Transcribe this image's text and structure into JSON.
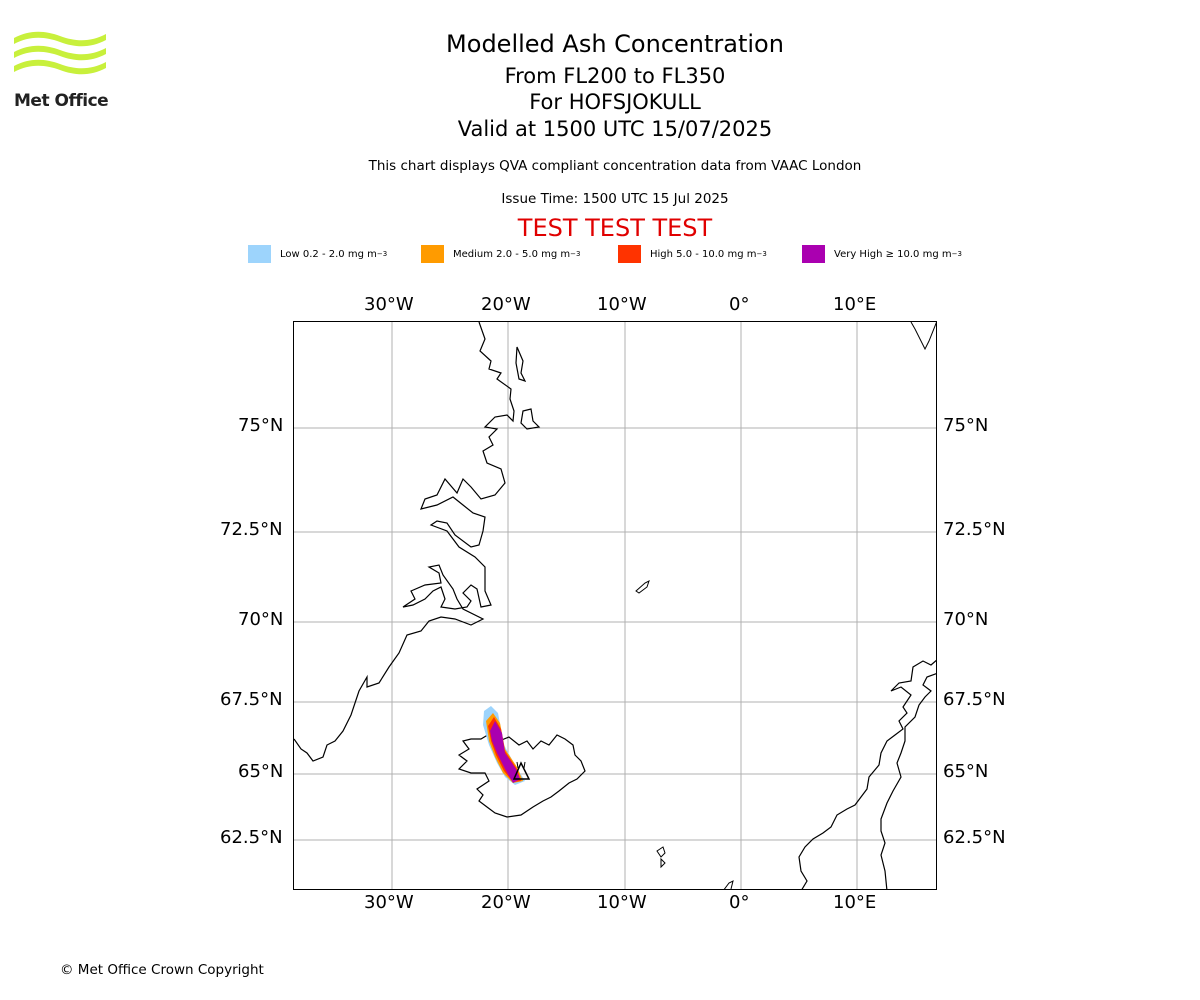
{
  "header": {
    "logo_text": "Met Office",
    "title_1": "Modelled Ash Concentration",
    "title_2": "From FL200 to FL350",
    "title_3": "For HOFSJOKULL",
    "title_4": "Valid at 1500 UTC 15/07/2025",
    "subtitle": "This chart displays QVA compliant concentration data from VAAC London",
    "issue_time": "Issue Time: 1500 UTC 15 Jul 2025",
    "test_banner": "TEST TEST TEST"
  },
  "legend": [
    {
      "label": "Low 0.2 - 2.0 mg m",
      "color": "#9dd4fc"
    },
    {
      "label": "Medium 2.0 - 5.0 mg m",
      "color": "#ff9b00"
    },
    {
      "label": "High 5.0 - 10.0 mg m",
      "color": "#ff3300"
    },
    {
      "label": "Very High ≥ 10.0 mg m",
      "color": "#aa00b0"
    }
  ],
  "legend_unit_exponent": "−3",
  "map": {
    "lon_ticks": [
      "30°W",
      "20°W",
      "10°W",
      "0°",
      "10°E"
    ],
    "lat_ticks": [
      "75°N",
      "72.5°N",
      "70°N",
      "67.5°N",
      "65°N",
      "62.5°N"
    ],
    "volcano_symbol": "triangle"
  },
  "footer": {
    "copyright": "© Met Office Crown Copyright"
  }
}
